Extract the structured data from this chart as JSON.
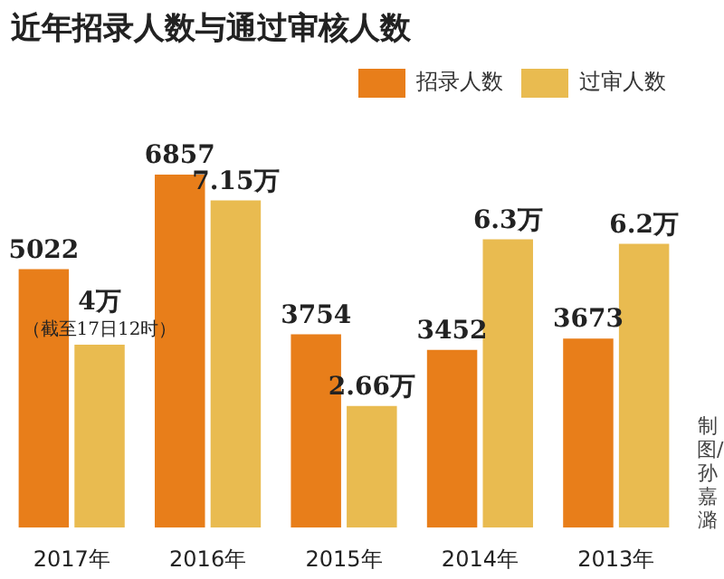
{
  "chart_data": {
    "type": "bar",
    "title": "近年招录人数与通过审核人数",
    "categories": [
      "2017年",
      "2016年",
      "2015年",
      "2014年",
      "2013年"
    ],
    "series": [
      {
        "name": "招录人数",
        "color": "#e87e1a",
        "values": [
          5022,
          6857,
          3754,
          3452,
          3673
        ],
        "value_labels": [
          "5022",
          "6857",
          "3754",
          "3452",
          "3673"
        ]
      },
      {
        "name": "过审人数",
        "color": "#e9bb50",
        "axis": "y2",
        "values": [
          4,
          7.15,
          2.66,
          6.3,
          6.2
        ],
        "value_labels": [
          "4万",
          "7.15万",
          "2.66万",
          "6.3万",
          "6.2万"
        ]
      }
    ],
    "tick_labels": "x",
    "grid": false,
    "legend": "top right",
    "annotations": [
      "（截至17日12时）",
      "制图/孙嘉潞"
    ]
  }
}
